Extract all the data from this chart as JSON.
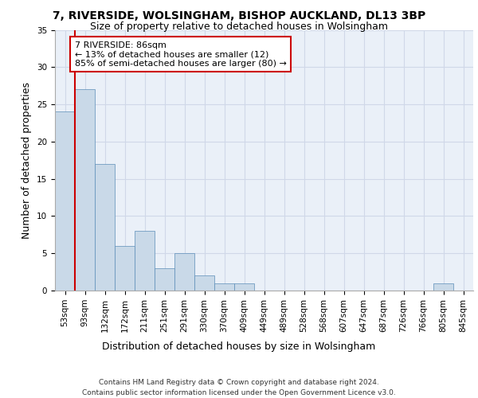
{
  "title_line1": "7, RIVERSIDE, WOLSINGHAM, BISHOP AUCKLAND, DL13 3BP",
  "title_line2": "Size of property relative to detached houses in Wolsingham",
  "xlabel": "Distribution of detached houses by size in Wolsingham",
  "ylabel": "Number of detached properties",
  "categories": [
    "53sqm",
    "93sqm",
    "132sqm",
    "172sqm",
    "211sqm",
    "251sqm",
    "291sqm",
    "330sqm",
    "370sqm",
    "409sqm",
    "449sqm",
    "489sqm",
    "528sqm",
    "568sqm",
    "607sqm",
    "647sqm",
    "687sqm",
    "726sqm",
    "766sqm",
    "805sqm",
    "845sqm"
  ],
  "values": [
    24,
    27,
    17,
    6,
    8,
    3,
    5,
    2,
    1,
    1,
    0,
    0,
    0,
    0,
    0,
    0,
    0,
    0,
    0,
    1,
    0
  ],
  "bar_color": "#c9d9e8",
  "bar_edge_color": "#5b8db8",
  "annotation_box_text": "7 RIVERSIDE: 86sqm\n← 13% of detached houses are smaller (12)\n85% of semi-detached houses are larger (80) →",
  "annotation_box_color": "#ffffff",
  "annotation_box_edge_color": "#cc0000",
  "vline_x": 0.5,
  "vline_color": "#cc0000",
  "ylim": [
    0,
    35
  ],
  "yticks": [
    0,
    5,
    10,
    15,
    20,
    25,
    30,
    35
  ],
  "grid_color": "#d0d8e8",
  "bg_color": "#eaf0f8",
  "footer_text": "Contains HM Land Registry data © Crown copyright and database right 2024.\nContains public sector information licensed under the Open Government Licence v3.0.",
  "title_fontsize": 10,
  "subtitle_fontsize": 9,
  "xlabel_fontsize": 9,
  "ylabel_fontsize": 9,
  "tick_fontsize": 7.5,
  "annotation_fontsize": 8,
  "footer_fontsize": 6.5
}
